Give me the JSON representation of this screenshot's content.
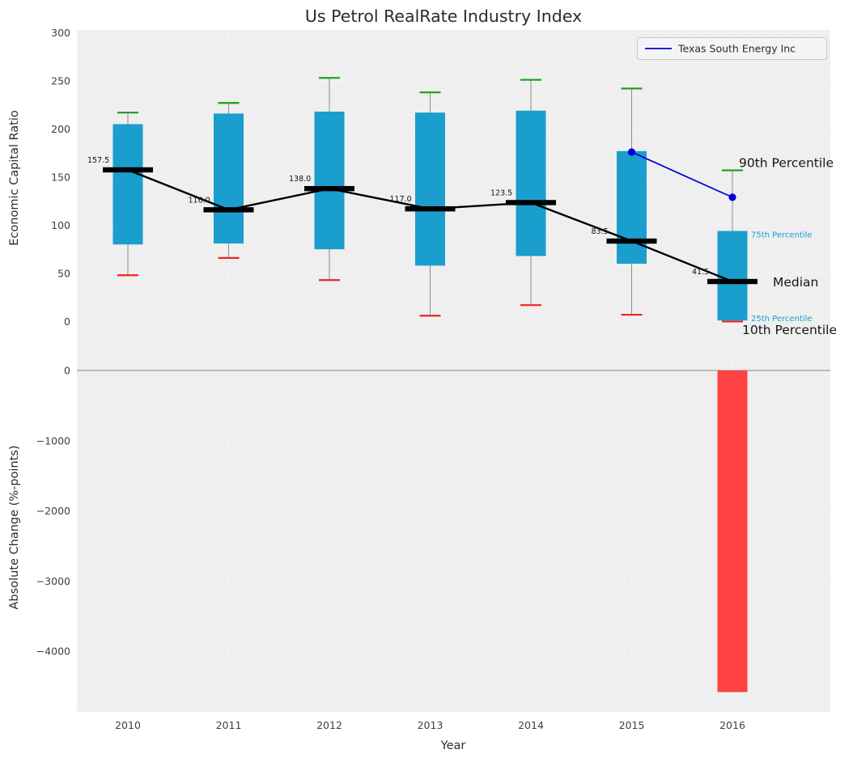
{
  "title": "Us Petrol RealRate Industry Index",
  "legend": {
    "series_label": "Texas South Energy Inc"
  },
  "colors": {
    "box": "#1a9ecd",
    "median_line": "#000000",
    "p90_cap": "#12a012",
    "p10_cap": "#ee2222",
    "company_line": "#0000dd",
    "negative_bar": "#ff4242",
    "plot_bg": "#efefef",
    "grid": "#ffffff",
    "whisker": "#8a8a8a",
    "zero_line": "#9a9a9a",
    "percentile_label": "#1a9ecd"
  },
  "chart_data": {
    "type": "box-whisker timeseries + bar",
    "title": "Us Petrol RealRate Industry Index",
    "xlabel": "Year",
    "categories": [
      2010,
      2011,
      2012,
      2013,
      2014,
      2015,
      2016
    ],
    "top_panel": {
      "ylabel": "Economic Capital Ratio",
      "yticks": [
        0,
        50,
        100,
        150,
        200,
        250,
        300
      ],
      "ylim": [
        0,
        300
      ],
      "grid": true,
      "median": [
        157.5,
        116.0,
        138.0,
        117.0,
        123.5,
        83.5,
        41.5
      ],
      "p25": [
        80,
        81,
        75,
        58,
        68,
        60,
        1
      ],
      "p75": [
        205,
        216,
        218,
        217,
        219,
        177,
        94
      ],
      "p10": [
        48,
        66,
        43,
        6,
        17,
        7,
        0
      ],
      "p90": [
        217,
        227,
        253,
        238,
        251,
        242,
        157
      ],
      "company_series": {
        "name": "Texas South Energy Inc",
        "years": [
          2015,
          2016
        ],
        "values": [
          176,
          129
        ]
      }
    },
    "bottom_panel": {
      "ylabel": "Absolute Change (%-points)",
      "yticks": [
        0,
        -1000,
        -2000,
        -3000,
        -4000
      ],
      "ylim": [
        -4850,
        300
      ],
      "bars": [
        {
          "year": 2016,
          "value": -4580
        }
      ]
    },
    "annotations": [
      {
        "key": "p90",
        "label": "90th Percentile"
      },
      {
        "key": "p75",
        "label": "75th Percentile"
      },
      {
        "key": "median",
        "label": "Median"
      },
      {
        "key": "p25",
        "label": "25th Percentile"
      },
      {
        "key": "p10",
        "label": "10th Percentile"
      }
    ]
  }
}
